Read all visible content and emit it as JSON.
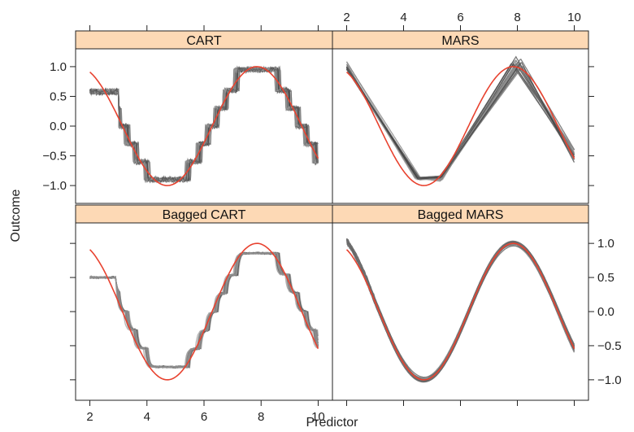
{
  "chart_data": {
    "type": "line",
    "layout": "2x2 lattice",
    "xlabel": "Predictor",
    "ylabel": "Outcome",
    "xlim": [
      1.5,
      10.5
    ],
    "ylim": [
      -1.3,
      1.3
    ],
    "x_ticks": [
      2,
      4,
      6,
      8,
      10
    ],
    "y_ticks": [
      -1.0,
      -0.5,
      0.0,
      0.5,
      1.0
    ],
    "x_tick_labels": [
      "2",
      "4",
      "6",
      "8",
      "10"
    ],
    "y_tick_labels": [
      "−1.0",
      "−0.5",
      "0.0",
      "0.5",
      "1.0"
    ],
    "true_function": {
      "name": "sin(x)",
      "color": "#e8422f"
    },
    "ensemble_color": "#555555",
    "strip_color": "#fdd9b5",
    "panels": [
      {
        "title": "CART",
        "model": "cart",
        "n_fits": 20,
        "approximate_fit": "step function following sin(x)"
      },
      {
        "title": "MARS",
        "model": "mars",
        "n_fits": 20,
        "approximate_fit": "piecewise linear, knots near 4.5, 5.3, 8, 10"
      },
      {
        "title": "Bagged CART",
        "model": "bagged_cart",
        "n_fits": 20,
        "approximate_fit": "smoothed step function"
      },
      {
        "title": "Bagged MARS",
        "model": "bagged_mars",
        "n_fits": 20,
        "approximate_fit": "smooth curve close to sin(x)"
      }
    ]
  }
}
